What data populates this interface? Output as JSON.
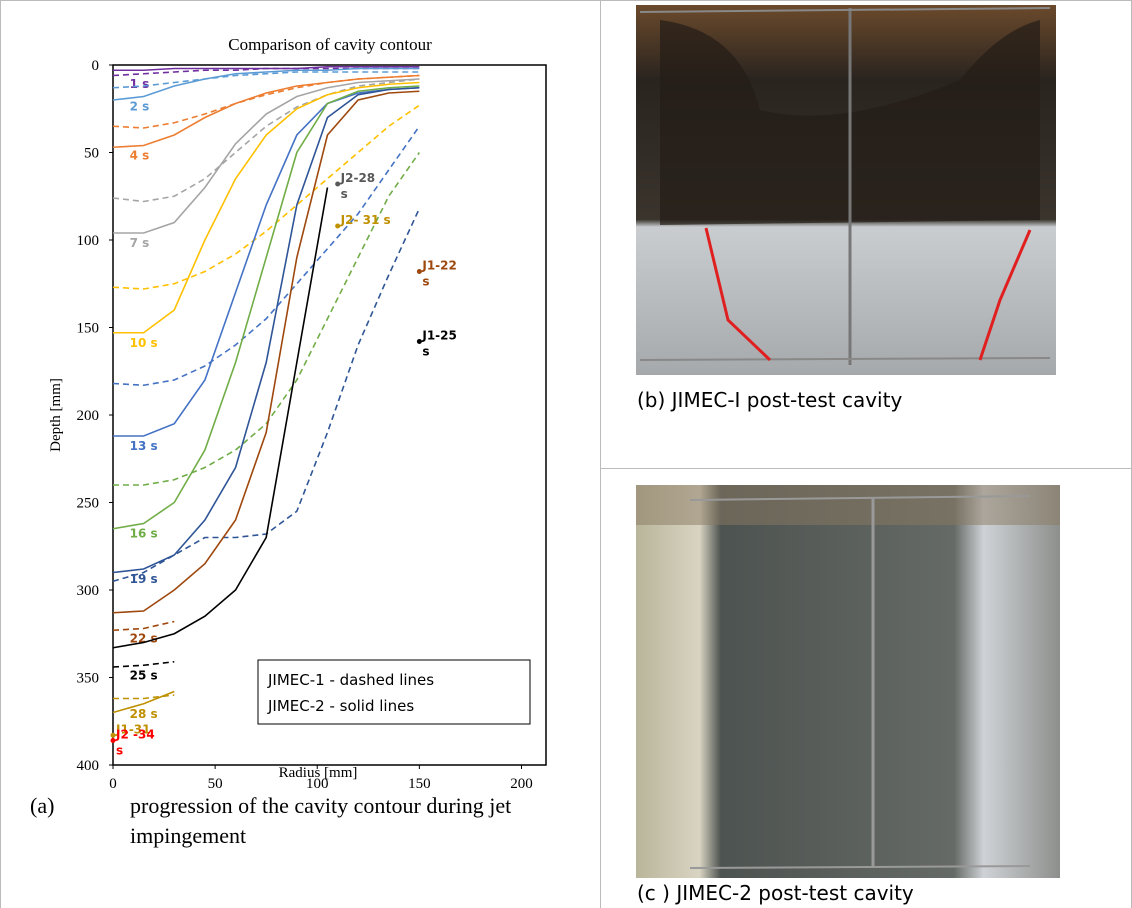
{
  "chart_data": {
    "type": "line",
    "title": "Comparison of cavity contour",
    "x_label": "Radius [mm]",
    "y_label": "Depth [mm]",
    "x": [
      0,
      15,
      30,
      45,
      60,
      75,
      90,
      105,
      120,
      135,
      150
    ],
    "xlim": [
      0,
      212
    ],
    "ylim": [
      0,
      400
    ],
    "y_reversed": true,
    "xticks": [
      0,
      50,
      100,
      150,
      200
    ],
    "yticks": [
      0,
      50,
      100,
      150,
      200,
      250,
      300,
      350,
      400
    ],
    "series": [
      {
        "name": "1 s",
        "color": "#7030a0",
        "style": "dashed",
        "values": [
          6,
          5,
          4,
          3,
          3,
          2,
          2,
          2,
          2,
          2,
          2
        ]
      },
      {
        "color": "#7030a0",
        "style": "solid",
        "values": [
          3,
          3,
          2,
          2,
          2,
          2,
          2,
          1,
          1,
          1,
          1
        ]
      },
      {
        "name": "2 s",
        "color": "#5b9bd5",
        "style": "solid",
        "values": [
          20,
          18,
          12,
          8,
          5,
          4,
          3,
          3,
          2,
          2,
          2
        ]
      },
      {
        "color": "#5b9bd5",
        "style": "dashed",
        "values": [
          13,
          12,
          10,
          8,
          6,
          5,
          4,
          4,
          4,
          4,
          4
        ]
      },
      {
        "name": "4 s",
        "color": "#ed7d31",
        "style": "solid",
        "values": [
          47,
          46,
          40,
          30,
          22,
          16,
          12,
          10,
          8,
          7,
          6
        ]
      },
      {
        "color": "#ed7d31",
        "style": "dashed",
        "values": [
          35,
          36,
          33,
          28,
          22,
          17,
          13,
          10,
          8,
          7,
          6
        ]
      },
      {
        "name": "7 s",
        "color": "#a5a5a5",
        "style": "solid",
        "values": [
          96,
          96,
          90,
          70,
          45,
          28,
          18,
          13,
          10,
          9,
          8
        ]
      },
      {
        "color": "#a5a5a5",
        "style": "dashed",
        "values": [
          76,
          78,
          75,
          65,
          50,
          35,
          24,
          17,
          12,
          10,
          8
        ]
      },
      {
        "name": "10 s",
        "color": "#ffc000",
        "style": "solid",
        "values": [
          153,
          153,
          140,
          100,
          65,
          40,
          25,
          17,
          13,
          11,
          10
        ]
      },
      {
        "color": "#ffc000",
        "style": "dashed",
        "values": [
          127,
          128,
          125,
          118,
          108,
          95,
          80,
          65,
          50,
          35,
          23
        ]
      },
      {
        "name": "13 s",
        "color": "#4472c4",
        "style": "solid",
        "values": [
          212,
          212,
          205,
          180,
          130,
          80,
          40,
          22,
          16,
          14,
          13
        ]
      },
      {
        "color": "#4472c4",
        "style": "dashed",
        "values": [
          182,
          183,
          180,
          172,
          160,
          145,
          125,
          105,
          85,
          60,
          35
        ]
      },
      {
        "name": "16 s",
        "color": "#70ad47",
        "style": "solid",
        "values": [
          265,
          262,
          250,
          220,
          170,
          110,
          50,
          22,
          15,
          13,
          12
        ]
      },
      {
        "color": "#70ad47",
        "style": "dashed",
        "values": [
          240,
          240,
          237,
          230,
          220,
          205,
          180,
          145,
          110,
          75,
          50
        ]
      },
      {
        "name": "19 s",
        "color": "#2f5597",
        "style": "solid",
        "values": [
          290,
          288,
          280,
          260,
          230,
          170,
          80,
          30,
          17,
          14,
          13
        ]
      },
      {
        "color": "#2f5597",
        "style": "dashed",
        "values": [
          295,
          290,
          280,
          270,
          270,
          268,
          255,
          210,
          160,
          120,
          82
        ]
      },
      {
        "color": "#9e480e",
        "style": "solid",
        "values": [
          313,
          312,
          300,
          285,
          260,
          210,
          110,
          40,
          20,
          16,
          15
        ]
      },
      {
        "name": "22 s",
        "color": "#9e480e",
        "style": "dashed",
        "values": [
          323,
          322,
          318,
          null,
          null,
          null,
          null,
          null,
          null,
          null,
          null
        ]
      },
      {
        "color": "#000000",
        "style": "solid",
        "values": [
          333,
          330,
          325,
          315,
          300,
          270,
          170,
          70,
          null,
          null,
          null
        ]
      },
      {
        "name": "25 s",
        "color": "#000000",
        "style": "dashed",
        "values": [
          344,
          343,
          341,
          null,
          null,
          null,
          null,
          null,
          null,
          null,
          null
        ]
      },
      {
        "name": "28 s",
        "color": "#bf9000",
        "style": "solid",
        "values": [
          370,
          365,
          358,
          null,
          null,
          null,
          null,
          null,
          null,
          null,
          null
        ]
      },
      {
        "color": "#bf9000",
        "style": "dashed",
        "values": [
          362,
          362,
          360,
          null,
          null,
          null,
          null,
          null,
          null,
          null,
          null
        ]
      }
    ],
    "points": [
      {
        "label": [
          "J2-28",
          "s"
        ],
        "x": 110,
        "y": 68,
        "color": "#595959"
      },
      {
        "label": [
          "J2- 31 s"
        ],
        "x": 110,
        "y": 92,
        "color": "#bf9000"
      },
      {
        "label": [
          "J1-22",
          "s"
        ],
        "x": 150,
        "y": 118,
        "color": "#9e480e"
      },
      {
        "label": [
          "J1-25",
          "s"
        ],
        "x": 150,
        "y": 158,
        "color": "#000000"
      },
      {
        "label": [
          "J1-31"
        ],
        "x": 0,
        "y": 383,
        "color": "#bf9000"
      },
      {
        "label": [
          "J2 -34",
          "s"
        ],
        "x": 0,
        "y": 386,
        "color": "#ff0000"
      }
    ],
    "legend": [
      "JIMEC-1 - dashed lines",
      "JIMEC-2 - solid lines"
    ]
  },
  "captions": {
    "a_label": "(a)",
    "a_text": [
      "progression of the cavity contour during jet",
      "impingement"
    ],
    "b": "(b) JIMEC-I post-test cavity",
    "c": "(c ) JIMEC-2 post-test cavity"
  }
}
